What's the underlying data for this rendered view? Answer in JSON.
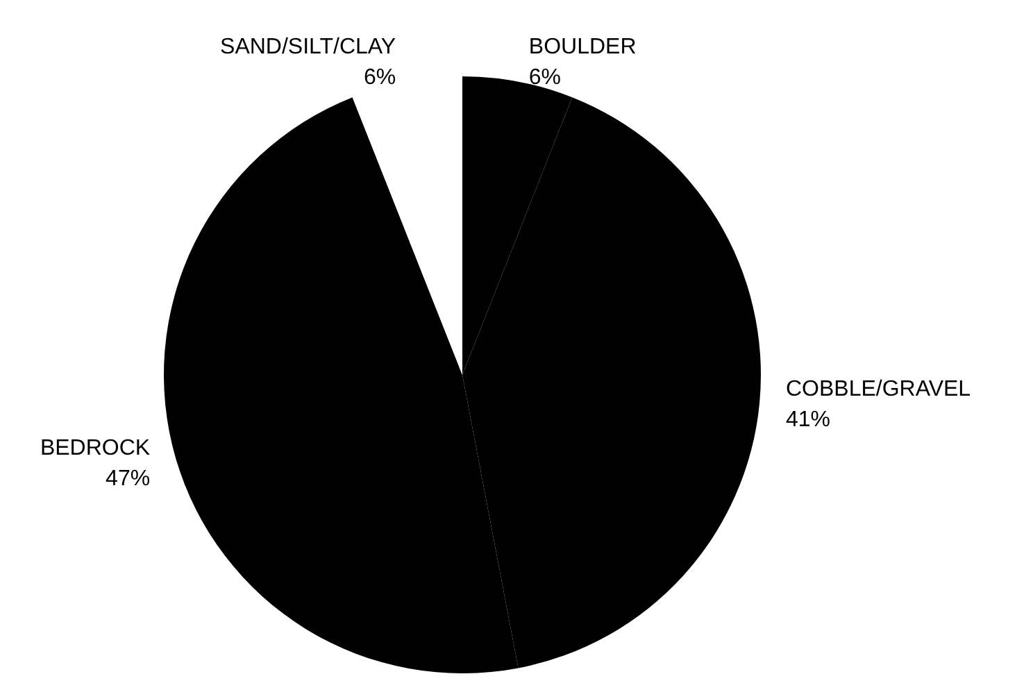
{
  "chart_data": {
    "type": "pie",
    "categories": [
      "BOULDER",
      "COBBLE/GRAVEL",
      "BEDROCK",
      "SAND/SILT/CLAY"
    ],
    "values": [
      6,
      41,
      47,
      6
    ],
    "colors": [
      "#000000",
      "#000000",
      "#000000",
      "#ffffff"
    ],
    "value_labels": [
      "6%",
      "41%",
      "47%",
      "6%"
    ],
    "legend": false
  }
}
